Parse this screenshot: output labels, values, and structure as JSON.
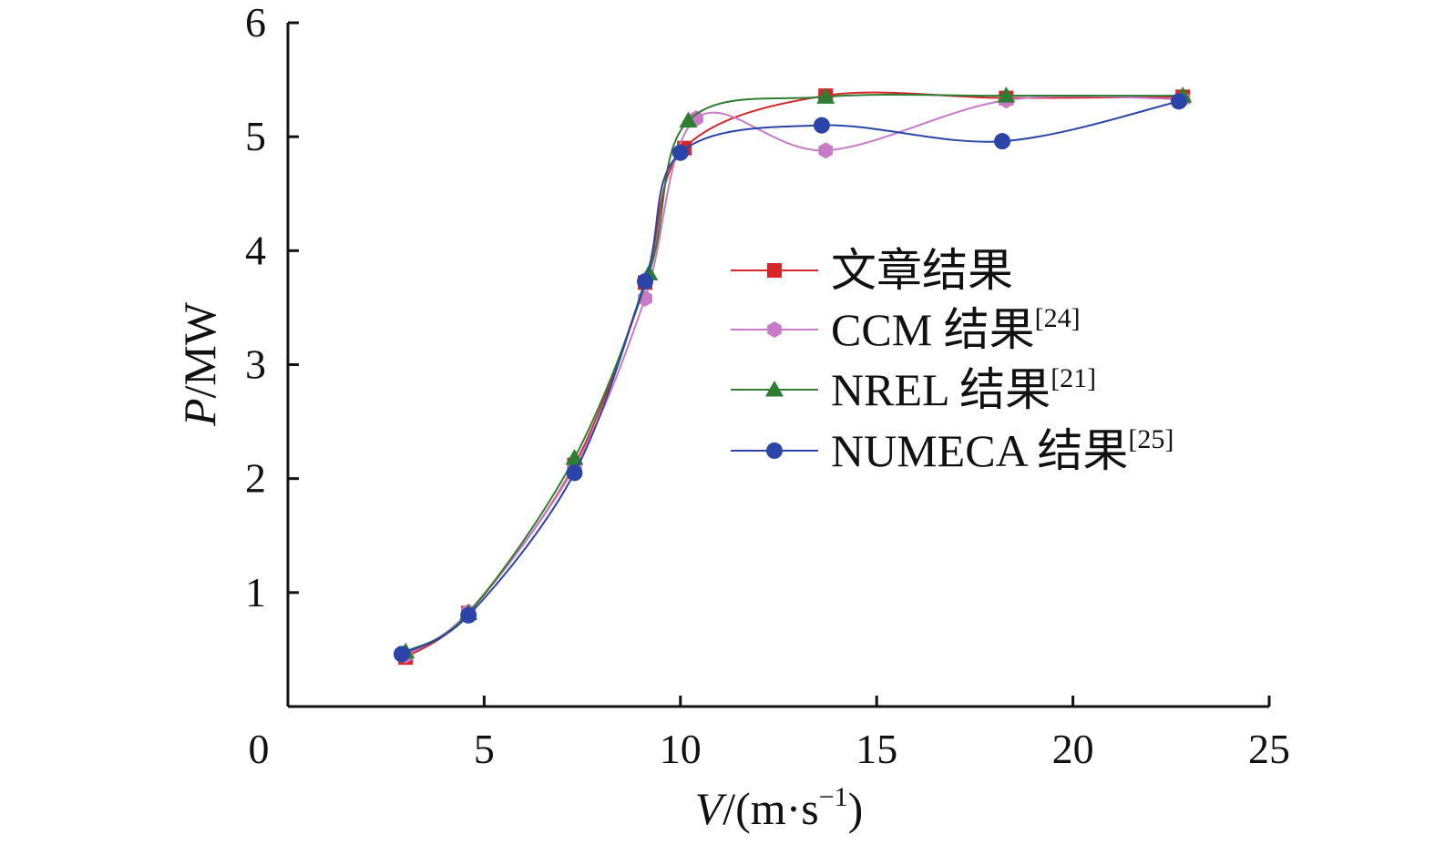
{
  "chart_data": {
    "type": "line",
    "xlabel": {
      "main": "V",
      "unit": "/(m·s",
      "sup": "−1",
      "close": ")"
    },
    "ylabel": {
      "main": "P",
      "unit": "/MW"
    },
    "xlim": [
      0,
      25
    ],
    "ylim": [
      0,
      6
    ],
    "x_ticks": [
      "0",
      "5",
      "10",
      "15",
      "20",
      "25"
    ],
    "y_ticks": [
      "1",
      "2",
      "3",
      "4",
      "5",
      "6"
    ],
    "grid": false,
    "legend_position": "center-right",
    "series": [
      {
        "name": "文章结果",
        "ref": "",
        "color": "#d62728",
        "marker": "square",
        "x": [
          3.0,
          4.6,
          7.3,
          9.1,
          10.1,
          13.7,
          18.3,
          22.8
        ],
        "y": [
          0.43,
          0.82,
          2.12,
          3.72,
          4.9,
          5.36,
          5.34,
          5.35
        ]
      },
      {
        "name": "CCM 结果",
        "ref": "[24]",
        "color": "#c879c8",
        "marker": "hexagon",
        "x": [
          3.0,
          4.6,
          7.3,
          9.1,
          10.4,
          13.7,
          18.3,
          22.8
        ],
        "y": [
          0.45,
          0.83,
          2.1,
          3.58,
          5.16,
          4.88,
          5.32,
          5.33
        ]
      },
      {
        "name": "NREL 结果",
        "ref": "[21]",
        "color": "#2e7d32",
        "marker": "triangle",
        "x": [
          3.0,
          4.6,
          7.3,
          9.2,
          10.2,
          13.7,
          18.3,
          22.8
        ],
        "y": [
          0.48,
          0.82,
          2.18,
          3.8,
          5.14,
          5.35,
          5.36,
          5.36
        ]
      },
      {
        "name": "NUMECA 结果",
        "ref": "[25]",
        "color": "#2a44a8",
        "marker": "circle",
        "x": [
          2.9,
          4.6,
          7.3,
          9.1,
          10.0,
          13.6,
          18.2,
          22.7
        ],
        "y": [
          0.46,
          0.8,
          2.05,
          3.73,
          4.86,
          5.1,
          4.96,
          5.31
        ]
      }
    ]
  }
}
